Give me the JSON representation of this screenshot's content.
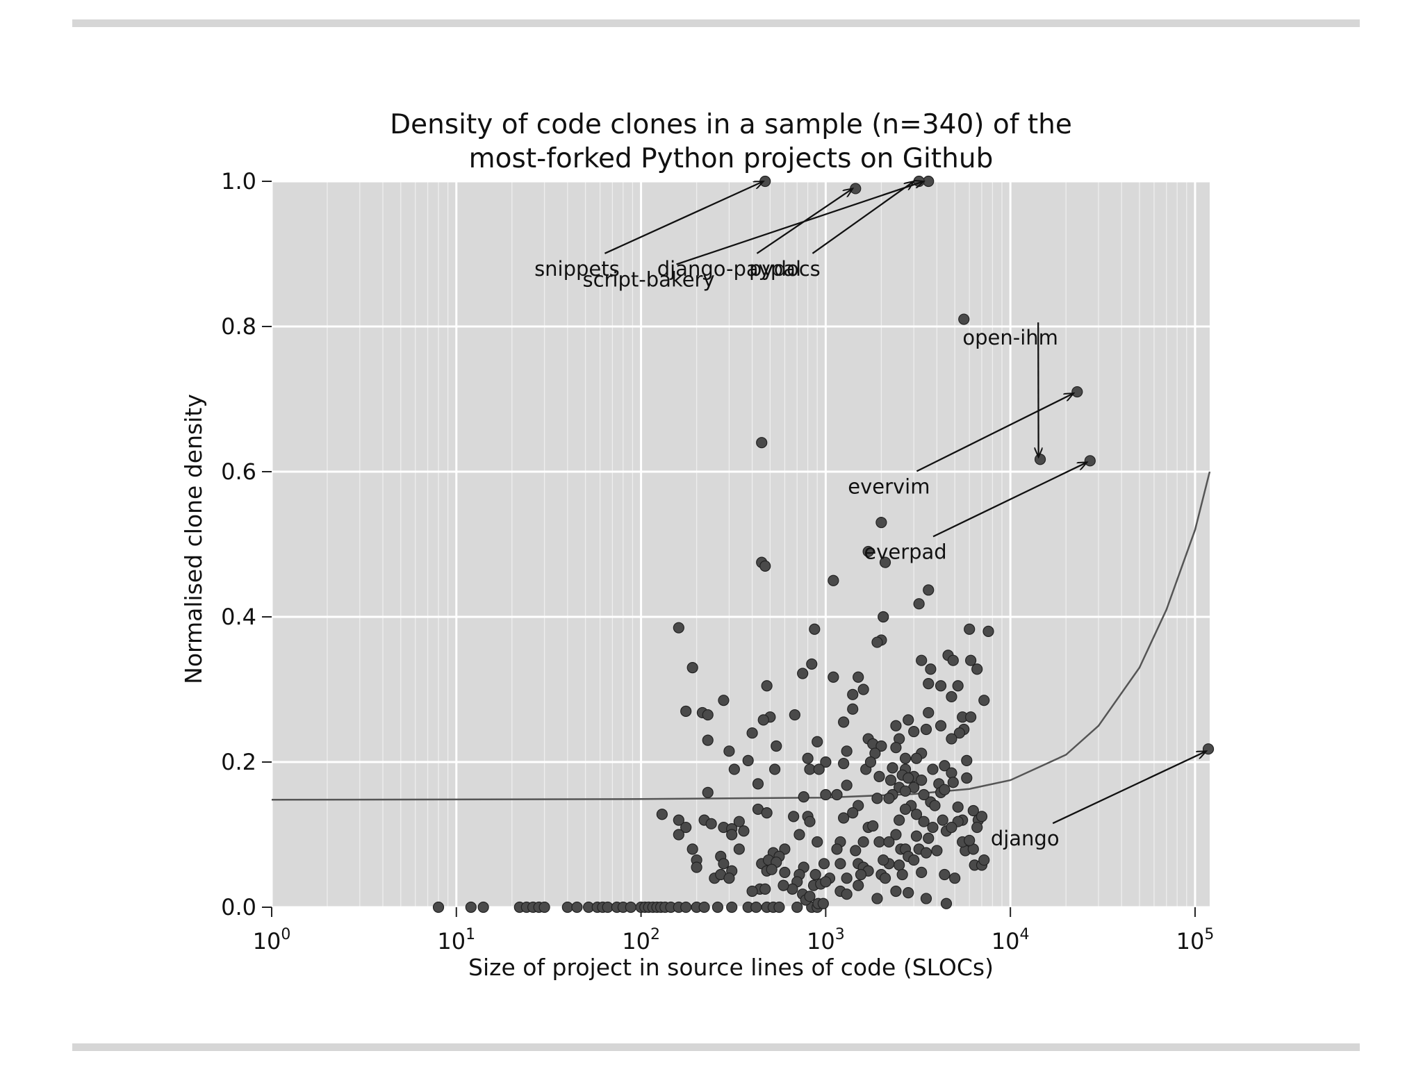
{
  "chart_data": {
    "type": "scatter",
    "title": [
      "Density of code clones in a sample (n=340) of the",
      "most-forked Python projects on Github"
    ],
    "xlabel": "Size of project in source lines of code (SLOCs)",
    "ylabel": "Normalised clone density",
    "x_scale": "log",
    "xlim": [
      1,
      120000
    ],
    "ylim": [
      0,
      1.0
    ],
    "x_ticks": [
      {
        "base": "10",
        "exp": "0",
        "value": 1
      },
      {
        "base": "10",
        "exp": "1",
        "value": 10
      },
      {
        "base": "10",
        "exp": "2",
        "value": 100
      },
      {
        "base": "10",
        "exp": "3",
        "value": 1000
      },
      {
        "base": "10",
        "exp": "4",
        "value": 10000
      },
      {
        "base": "10",
        "exp": "5",
        "value": 100000
      }
    ],
    "y_ticks": [
      "0.0",
      "0.2",
      "0.4",
      "0.6",
      "0.8",
      "1.0"
    ],
    "grid": true,
    "background_color": "#d9d9d9",
    "point_color": "#4a4a4a",
    "curve_color": "#555555",
    "fit_curve": [
      [
        1,
        0.148
      ],
      [
        100,
        0.149
      ],
      [
        1000,
        0.151
      ],
      [
        3000,
        0.156
      ],
      [
        6000,
        0.163
      ],
      [
        10000,
        0.175
      ],
      [
        20000,
        0.21
      ],
      [
        30000,
        0.25
      ],
      [
        50000,
        0.33
      ],
      [
        70000,
        0.41
      ],
      [
        100000,
        0.52
      ],
      [
        120000,
        0.6
      ]
    ],
    "annotations": [
      {
        "text": "snippets",
        "label_pos": [
          45,
          0.87
        ],
        "target": [
          460,
          1.0
        ],
        "point": [
          470,
          1.0
        ]
      },
      {
        "text": "django-paypal",
        "label_pos": [
          300,
          0.87
        ],
        "target": [
          1400,
          0.99
        ],
        "point": [
          1450,
          0.99
        ]
      },
      {
        "text": "script-bakery",
        "label_pos": [
          110,
          0.855
        ],
        "target": [
          3400,
          1.0
        ],
        "point": [
          3600,
          1.0
        ]
      },
      {
        "text": "pydocs",
        "label_pos": [
          600,
          0.87
        ],
        "target": [
          3000,
          1.0
        ],
        "point": [
          3200,
          1.0
        ]
      },
      {
        "text": "open-ihm",
        "label_pos": [
          10000,
          0.775
        ],
        "target": [
          14200,
          0.62
        ],
        "point": [
          14500,
          0.617
        ]
      },
      {
        "text": "evervim",
        "label_pos": [
          2200,
          0.57
        ],
        "target": [
          22000,
          0.708
        ],
        "point": [
          23000,
          0.71
        ]
      },
      {
        "text": "everpad",
        "label_pos": [
          2700,
          0.48
        ],
        "target": [
          26000,
          0.613
        ],
        "point": [
          27000,
          0.615
        ]
      },
      {
        "text": "django",
        "label_pos": [
          12000,
          0.085
        ],
        "target": [
          115000,
          0.215
        ],
        "point": [
          118000,
          0.218
        ]
      }
    ],
    "points": [
      [
        8,
        0
      ],
      [
        12,
        0
      ],
      [
        14,
        0
      ],
      [
        22,
        0
      ],
      [
        24,
        0
      ],
      [
        26,
        0
      ],
      [
        28,
        0
      ],
      [
        30,
        0
      ],
      [
        40,
        0
      ],
      [
        45,
        0
      ],
      [
        52,
        0
      ],
      [
        58,
        0
      ],
      [
        62,
        0
      ],
      [
        66,
        0
      ],
      [
        74,
        0
      ],
      [
        80,
        0
      ],
      [
        88,
        0
      ],
      [
        100,
        0
      ],
      [
        105,
        0
      ],
      [
        110,
        0
      ],
      [
        116,
        0
      ],
      [
        122,
        0
      ],
      [
        128,
        0
      ],
      [
        135,
        0
      ],
      [
        145,
        0
      ],
      [
        160,
        0
      ],
      [
        175,
        0
      ],
      [
        200,
        0
      ],
      [
        220,
        0
      ],
      [
        260,
        0
      ],
      [
        310,
        0
      ],
      [
        380,
        0
      ],
      [
        420,
        0
      ],
      [
        480,
        0
      ],
      [
        520,
        0
      ],
      [
        560,
        0
      ],
      [
        700,
        0
      ],
      [
        840,
        0
      ],
      [
        900,
        0
      ],
      [
        5600,
        0.81
      ],
      [
        450,
        0.64
      ],
      [
        2000,
        0.53
      ],
      [
        1700,
        0.49
      ],
      [
        2100,
        0.475
      ],
      [
        450,
        0.475
      ],
      [
        470,
        0.47
      ],
      [
        1100,
        0.45
      ],
      [
        3600,
        0.437
      ],
      [
        3200,
        0.418
      ],
      [
        2050,
        0.4
      ],
      [
        160,
        0.385
      ],
      [
        870,
        0.383
      ],
      [
        6000,
        0.383
      ],
      [
        7600,
        0.38
      ],
      [
        2000,
        0.368
      ],
      [
        1900,
        0.365
      ],
      [
        4600,
        0.347
      ],
      [
        4900,
        0.34
      ],
      [
        3300,
        0.34
      ],
      [
        840,
        0.335
      ],
      [
        6100,
        0.34
      ],
      [
        190,
        0.33
      ],
      [
        3700,
        0.328
      ],
      [
        6600,
        0.328
      ],
      [
        750,
        0.322
      ],
      [
        1100,
        0.317
      ],
      [
        1500,
        0.317
      ],
      [
        3600,
        0.308
      ],
      [
        4200,
        0.305
      ],
      [
        480,
        0.305
      ],
      [
        1600,
        0.3
      ],
      [
        5200,
        0.305
      ],
      [
        1400,
        0.293
      ],
      [
        4800,
        0.29
      ],
      [
        280,
        0.285
      ],
      [
        7200,
        0.285
      ],
      [
        1400,
        0.273
      ],
      [
        175,
        0.27
      ],
      [
        215,
        0.268
      ],
      [
        230,
        0.265
      ],
      [
        500,
        0.262
      ],
      [
        460,
        0.258
      ],
      [
        680,
        0.265
      ],
      [
        3600,
        0.268
      ],
      [
        5500,
        0.262
      ],
      [
        6100,
        0.262
      ],
      [
        1250,
        0.255
      ],
      [
        2800,
        0.258
      ],
      [
        2400,
        0.25
      ],
      [
        4200,
        0.25
      ],
      [
        3500,
        0.245
      ],
      [
        5600,
        0.245
      ],
      [
        5300,
        0.24
      ],
      [
        400,
        0.24
      ],
      [
        3000,
        0.242
      ],
      [
        2500,
        0.232
      ],
      [
        1700,
        0.232
      ],
      [
        4800,
        0.232
      ],
      [
        230,
        0.23
      ],
      [
        1800,
        0.225
      ],
      [
        900,
        0.228
      ],
      [
        2000,
        0.222
      ],
      [
        540,
        0.222
      ],
      [
        2400,
        0.22
      ],
      [
        1300,
        0.215
      ],
      [
        300,
        0.215
      ],
      [
        1850,
        0.212
      ],
      [
        3300,
        0.212
      ],
      [
        3100,
        0.205
      ],
      [
        2700,
        0.205
      ],
      [
        5800,
        0.202
      ],
      [
        800,
        0.205
      ],
      [
        380,
        0.202
      ],
      [
        1000,
        0.2
      ],
      [
        4400,
        0.195
      ],
      [
        1250,
        0.198
      ],
      [
        3800,
        0.19
      ],
      [
        2300,
        0.192
      ],
      [
        2700,
        0.19
      ],
      [
        820,
        0.19
      ],
      [
        920,
        0.19
      ],
      [
        1650,
        0.19
      ],
      [
        320,
        0.19
      ],
      [
        530,
        0.19
      ],
      [
        4800,
        0.185
      ],
      [
        2600,
        0.182
      ],
      [
        3000,
        0.18
      ],
      [
        2800,
        0.178
      ],
      [
        3300,
        0.175
      ],
      [
        4100,
        0.17
      ],
      [
        5800,
        0.178
      ],
      [
        4900,
        0.172
      ],
      [
        1300,
        0.168
      ],
      [
        2500,
        0.165
      ],
      [
        3000,
        0.165
      ],
      [
        430,
        0.17
      ],
      [
        2700,
        0.16
      ],
      [
        2300,
        0.155
      ],
      [
        4200,
        0.158
      ],
      [
        4400,
        0.162
      ],
      [
        230,
        0.158
      ],
      [
        1000,
        0.155
      ],
      [
        760,
        0.152
      ],
      [
        1900,
        0.15
      ],
      [
        2200,
        0.15
      ],
      [
        1150,
        0.155
      ],
      [
        3700,
        0.145
      ],
      [
        2900,
        0.14
      ],
      [
        1500,
        0.14
      ],
      [
        5200,
        0.138
      ],
      [
        2700,
        0.135
      ],
      [
        6300,
        0.133
      ],
      [
        1400,
        0.13
      ],
      [
        3100,
        0.128
      ],
      [
        800,
        0.125
      ],
      [
        670,
        0.125
      ],
      [
        1250,
        0.123
      ],
      [
        2500,
        0.12
      ],
      [
        3400,
        0.118
      ],
      [
        5500,
        0.12
      ],
      [
        5200,
        0.118
      ],
      [
        6700,
        0.12
      ],
      [
        7000,
        0.125
      ],
      [
        430,
        0.135
      ],
      [
        220,
        0.12
      ],
      [
        160,
        0.12
      ],
      [
        340,
        0.118
      ],
      [
        240,
        0.115
      ],
      [
        130,
        0.128
      ],
      [
        175,
        0.11
      ],
      [
        280,
        0.11
      ],
      [
        310,
        0.108
      ],
      [
        360,
        0.105
      ],
      [
        480,
        0.13
      ],
      [
        820,
        0.118
      ],
      [
        1700,
        0.11
      ],
      [
        1800,
        0.112
      ],
      [
        2400,
        0.1
      ],
      [
        3100,
        0.098
      ],
      [
        4500,
        0.105
      ],
      [
        4800,
        0.11
      ],
      [
        3600,
        0.095
      ],
      [
        1950,
        0.09
      ],
      [
        1200,
        0.09
      ],
      [
        1600,
        0.09
      ],
      [
        2200,
        0.09
      ],
      [
        900,
        0.09
      ],
      [
        720,
        0.1
      ],
      [
        600,
        0.08
      ],
      [
        520,
        0.075
      ],
      [
        340,
        0.08
      ],
      [
        310,
        0.1
      ],
      [
        190,
        0.08
      ],
      [
        160,
        0.1
      ],
      [
        200,
        0.065
      ],
      [
        270,
        0.07
      ],
      [
        1150,
        0.08
      ],
      [
        1450,
        0.078
      ],
      [
        2550,
        0.08
      ],
      [
        2700,
        0.08
      ],
      [
        3200,
        0.08
      ],
      [
        3500,
        0.075
      ],
      [
        4000,
        0.078
      ],
      [
        5700,
        0.078
      ],
      [
        6300,
        0.08
      ],
      [
        5500,
        0.09
      ],
      [
        6000,
        0.092
      ],
      [
        560,
        0.07
      ],
      [
        450,
        0.06
      ],
      [
        490,
        0.065
      ],
      [
        540,
        0.062
      ],
      [
        760,
        0.055
      ],
      [
        980,
        0.06
      ],
      [
        1200,
        0.06
      ],
      [
        1500,
        0.06
      ],
      [
        1600,
        0.055
      ],
      [
        2200,
        0.06
      ],
      [
        2500,
        0.058
      ],
      [
        2800,
        0.07
      ],
      [
        3000,
        0.065
      ],
      [
        6400,
        0.058
      ],
      [
        7000,
        0.058
      ],
      [
        7200,
        0.065
      ],
      [
        280,
        0.06
      ],
      [
        200,
        0.055
      ],
      [
        310,
        0.05
      ],
      [
        480,
        0.05
      ],
      [
        510,
        0.052
      ],
      [
        600,
        0.048
      ],
      [
        720,
        0.045
      ],
      [
        880,
        0.045
      ],
      [
        1300,
        0.04
      ],
      [
        1700,
        0.05
      ],
      [
        2000,
        0.045
      ],
      [
        2100,
        0.04
      ],
      [
        2600,
        0.045
      ],
      [
        3300,
        0.048
      ],
      [
        4400,
        0.045
      ],
      [
        5000,
        0.04
      ],
      [
        250,
        0.04
      ],
      [
        270,
        0.045
      ],
      [
        300,
        0.04
      ],
      [
        1050,
        0.04
      ],
      [
        700,
        0.035
      ],
      [
        860,
        0.03
      ],
      [
        440,
        0.025
      ],
      [
        470,
        0.025
      ],
      [
        400,
        0.022
      ],
      [
        940,
        0.032
      ],
      [
        1000,
        0.035
      ],
      [
        1200,
        0.022
      ],
      [
        1500,
        0.03
      ],
      [
        2400,
        0.022
      ],
      [
        2800,
        0.02
      ],
      [
        3500,
        0.012
      ],
      [
        1900,
        0.012
      ],
      [
        750,
        0.018
      ],
      [
        780,
        0.01
      ],
      [
        820,
        0.015
      ],
      [
        4500,
        0.005
      ],
      [
        910,
        0.005
      ],
      [
        970,
        0.005
      ],
      [
        1300,
        0.018
      ],
      [
        660,
        0.025
      ],
      [
        590,
        0.03
      ],
      [
        1550,
        0.045
      ],
      [
        2050,
        0.065
      ],
      [
        3800,
        0.11
      ],
      [
        4300,
        0.12
      ],
      [
        6600,
        0.11
      ],
      [
        3900,
        0.14
      ],
      [
        3400,
        0.155
      ],
      [
        1750,
        0.2
      ],
      [
        1950,
        0.18
      ],
      [
        2250,
        0.175
      ]
    ]
  }
}
